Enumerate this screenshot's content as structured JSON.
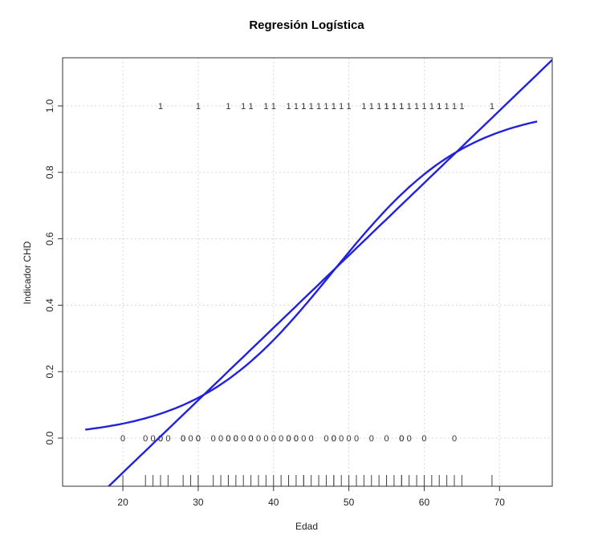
{
  "chart_data": {
    "type": "scatter",
    "title": "Regresión Logística",
    "xlabel": "Edad",
    "ylabel": "Indicador CHD",
    "xlim": [
      12,
      77
    ],
    "ylim": [
      -0.145,
      1.145
    ],
    "xticks": [
      20,
      30,
      40,
      50,
      60,
      70
    ],
    "xtick_labels": [
      "20",
      "30",
      "40",
      "50",
      "60",
      "70"
    ],
    "yticks": [
      0.0,
      0.2,
      0.4,
      0.6,
      0.8,
      1.0
    ],
    "ytick_labels": [
      "0.0",
      "0.2",
      "0.4",
      "0.6",
      "0.8",
      "1.0"
    ],
    "grid": true,
    "line_color": "#2222dd",
    "points_chd1": [
      25,
      30,
      34,
      36,
      37,
      39,
      40,
      42,
      43,
      44,
      44,
      45,
      46,
      47,
      48,
      48,
      49,
      50,
      52,
      53,
      54,
      55,
      55,
      56,
      56,
      57,
      57,
      58,
      59,
      60,
      61,
      62,
      62,
      63,
      64,
      65,
      69
    ],
    "points_chd0": [
      20,
      23,
      24,
      25,
      25,
      26,
      28,
      28,
      29,
      30,
      30,
      32,
      33,
      34,
      34,
      35,
      35,
      36,
      37,
      37,
      38,
      39,
      40,
      41,
      42,
      42,
      43,
      43,
      44,
      45,
      47,
      48,
      48,
      49,
      50,
      51,
      53,
      55,
      57,
      57,
      58,
      60,
      64
    ],
    "rug": [
      20,
      23,
      24,
      25,
      26,
      28,
      29,
      30,
      30,
      32,
      33,
      34,
      34,
      35,
      36,
      37,
      38,
      39,
      40,
      41,
      42,
      42,
      43,
      44,
      44,
      45,
      46,
      47,
      48,
      48,
      49,
      50,
      51,
      52,
      53,
      54,
      55,
      55,
      56,
      57,
      57,
      58,
      59,
      60,
      61,
      62,
      63,
      64,
      65,
      69
    ],
    "series": [
      {
        "type": "linear",
        "intercept": -0.54,
        "slope": 0.0218,
        "x_range": [
          12,
          77
        ]
      },
      {
        "type": "logistic",
        "intercept": -5.31,
        "slope": 0.111,
        "x_range": [
          15,
          75
        ]
      }
    ]
  }
}
